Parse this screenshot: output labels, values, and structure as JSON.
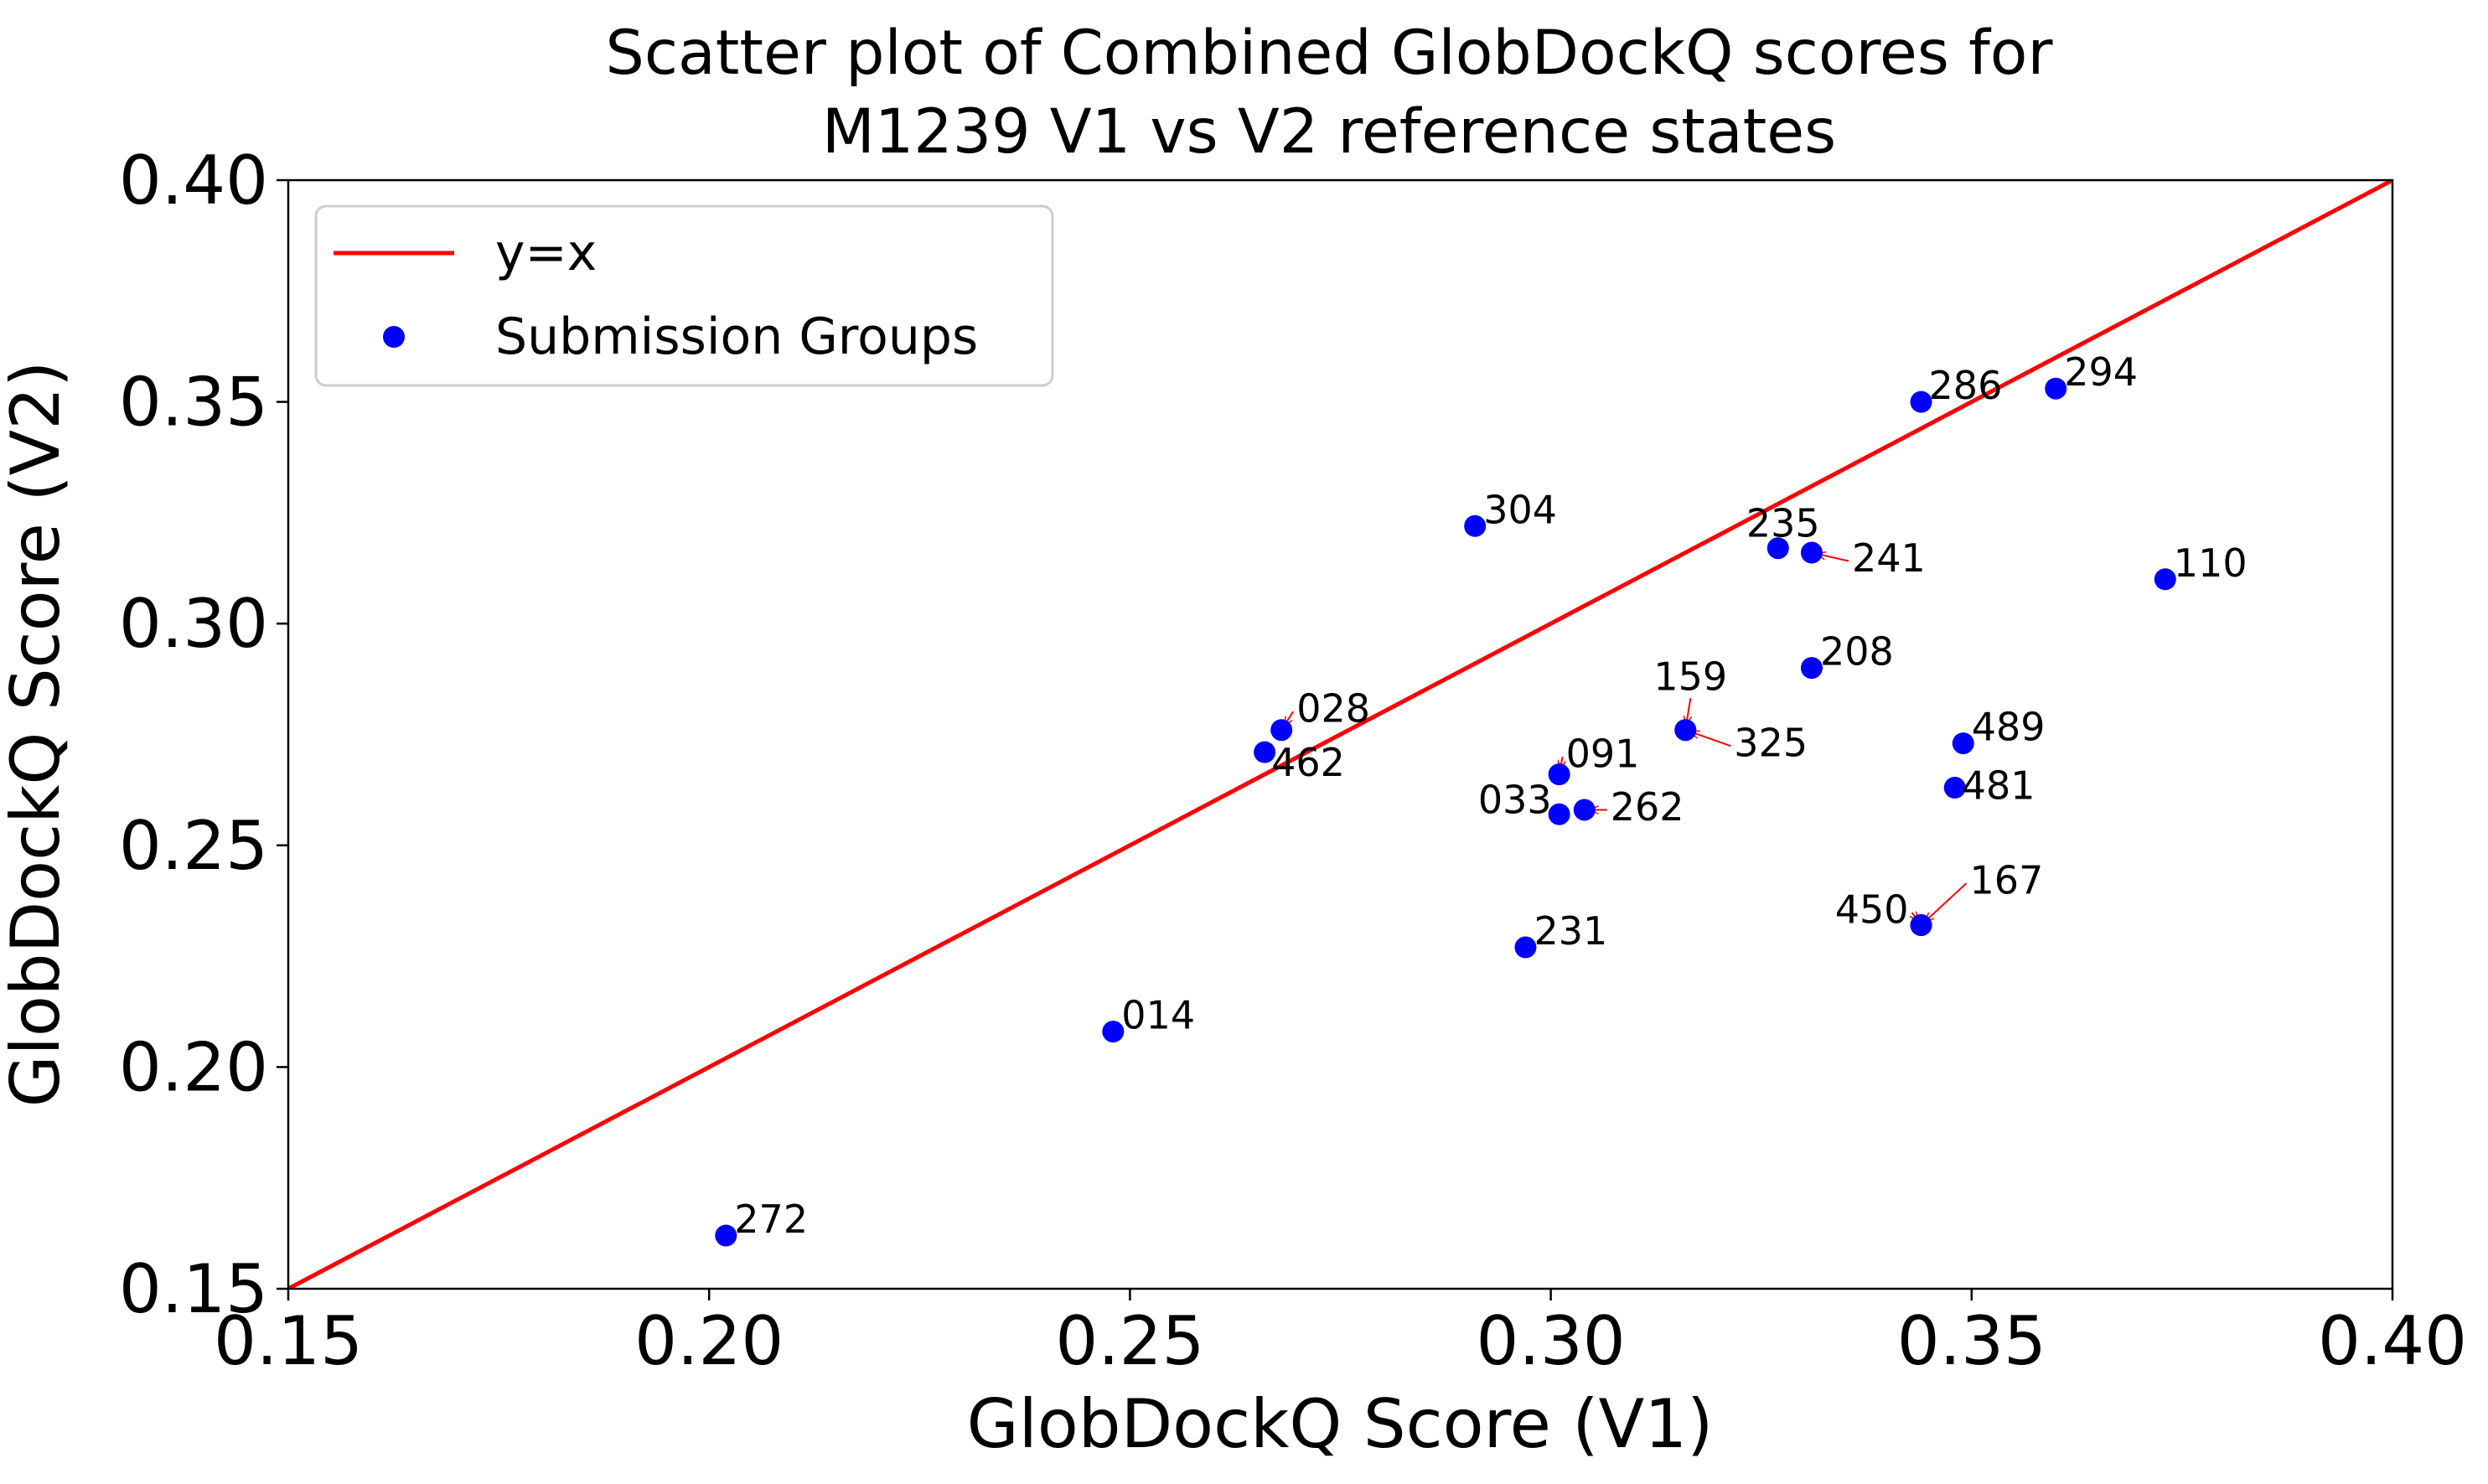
{
  "chart_data": {
    "type": "scatter",
    "title": [
      "Scatter plot of Combined GlobDockQ scores for",
      "M1239 V1 vs V2 reference states"
    ],
    "xlabel": "GlobDockQ Score (V1)",
    "ylabel": "GlobDockQ Score (V2)",
    "xlim": [
      0.15,
      0.4
    ],
    "ylim": [
      0.15,
      0.4
    ],
    "xticks": [
      "0.15",
      "0.20",
      "0.25",
      "0.30",
      "0.35",
      "0.40"
    ],
    "yticks": [
      "0.15",
      "0.20",
      "0.25",
      "0.30",
      "0.35",
      "0.40"
    ],
    "grid": false,
    "legend_position": "top-left",
    "reference_line": {
      "name": "y=x",
      "color": "#ff0000"
    },
    "series": [
      {
        "name": "Submission Groups",
        "color": "#0000ff",
        "points": [
          {
            "label": "286",
            "x": 0.344,
            "y": 0.35
          },
          {
            "label": "294",
            "x": 0.36,
            "y": 0.353
          },
          {
            "label": "304",
            "x": 0.291,
            "y": 0.322
          },
          {
            "label": "235",
            "x": 0.327,
            "y": 0.317
          },
          {
            "label": "241",
            "x": 0.331,
            "y": 0.316
          },
          {
            "label": "110",
            "x": 0.373,
            "y": 0.31
          },
          {
            "label": "208",
            "x": 0.331,
            "y": 0.29
          },
          {
            "label": "159",
            "x": 0.316,
            "y": 0.276
          },
          {
            "label": "325",
            "x": 0.316,
            "y": 0.276
          },
          {
            "label": "028",
            "x": 0.268,
            "y": 0.276
          },
          {
            "label": "462",
            "x": 0.266,
            "y": 0.271
          },
          {
            "label": "489",
            "x": 0.349,
            "y": 0.273
          },
          {
            "label": "091",
            "x": 0.301,
            "y": 0.266
          },
          {
            "label": "481",
            "x": 0.348,
            "y": 0.263
          },
          {
            "label": "033",
            "x": 0.301,
            "y": 0.257
          },
          {
            "label": "262",
            "x": 0.304,
            "y": 0.258
          },
          {
            "label": "450",
            "x": 0.344,
            "y": 0.232
          },
          {
            "label": "167",
            "x": 0.344,
            "y": 0.232
          },
          {
            "label": "231",
            "x": 0.297,
            "y": 0.227
          },
          {
            "label": "014",
            "x": 0.248,
            "y": 0.208
          },
          {
            "label": "272",
            "x": 0.202,
            "y": 0.162
          }
        ]
      }
    ]
  }
}
